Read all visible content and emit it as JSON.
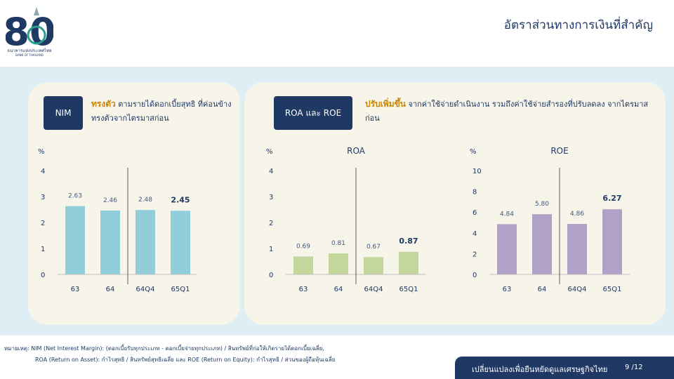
{
  "logo": {
    "number": "80",
    "name": "ธนาคารแห่งประเทศไทย",
    "name_en": "BANK OF THAILAND",
    "colors": {
      "navy": "#1f3864",
      "teal": "#2a9d8f"
    }
  },
  "page_title": "อัตราส่วนทางการเงินที่สำคัญ",
  "nim_panel": {
    "badge": "NIM",
    "highlight": "ทรงตัว",
    "desc_rest": " ตามรายได้ดอกเบี้ยสุทธิ ที่ค่อนข้างทรงตัวจากไตรมาสก่อน"
  },
  "ro_panel": {
    "badge": "ROA และ ROE",
    "highlight": "ปรับเพิ่มขึ้น",
    "desc_rest": " จากค่าใช้จ่ายดำเนินงาน รวมถึงค่าใช้จ่ายสำรองที่ปรับลดลง จากไตรมาสก่อน"
  },
  "chart_data": [
    {
      "type": "bar",
      "title": "",
      "ylabel": "%",
      "categories": [
        "63",
        "64",
        "64Q4",
        "65Q1"
      ],
      "values": [
        2.63,
        2.46,
        2.48,
        2.45
      ],
      "value_labels": [
        "2.63",
        "2.46",
        "2.48",
        "2.45"
      ],
      "ylim": [
        0,
        4
      ],
      "yticks": [
        "0",
        "1",
        "2",
        "3",
        "4"
      ],
      "color": "#92cddc",
      "emphasized": "65Q1",
      "divider_after": "64",
      "grid": false
    },
    {
      "type": "bar",
      "title": "ROA",
      "ylabel": "%",
      "categories": [
        "63",
        "64",
        "64Q4",
        "65Q1"
      ],
      "values": [
        0.69,
        0.81,
        0.67,
        0.87
      ],
      "value_labels": [
        "0.69",
        "0.81",
        "0.67",
        "0.87"
      ],
      "ylim": [
        0,
        4
      ],
      "yticks": [
        "0",
        "1",
        "2",
        "3",
        "4"
      ],
      "color": "#c4d79b",
      "emphasized": "65Q1",
      "divider_after": "64",
      "grid": false
    },
    {
      "type": "bar",
      "title": "ROE",
      "ylabel": "%",
      "categories": [
        "63",
        "64",
        "64Q4",
        "65Q1"
      ],
      "values": [
        4.84,
        5.8,
        4.86,
        6.27
      ],
      "value_labels": [
        "4.84",
        "5.80",
        "4.86",
        "6.27"
      ],
      "ylim": [
        0,
        10
      ],
      "yticks": [
        "0",
        "2",
        "4",
        "6",
        "8",
        "10"
      ],
      "color": "#b1a0c7",
      "emphasized": "65Q1",
      "divider_after": "64",
      "grid": false
    }
  ],
  "footnote": {
    "line1": "หมายเหตุ: NIM (Net Interest Margin): (ดอกเบี้ยรับทุกประเภท - ดอกเบี้ยจ่ายทุกประเภท) / สินทรัพย์ที่ก่อให้เกิดรายได้ดอกเบี้ยเฉลี่ย,",
    "line2": "ROA (Return on Asset): กำไรสุทธิ / สินทรัพย์สุทธิเฉลี่ย และ ROE (Return on Equity): กำไรสุทธิ / ส่วนของผู้ถือหุ้นเฉลี่ย"
  },
  "bottom_bar": {
    "slogan": "เปลี่ยนแปลงเพื่อยืนหยัดดูแลเศรษฐกิจไทย",
    "page": "9 /12"
  }
}
